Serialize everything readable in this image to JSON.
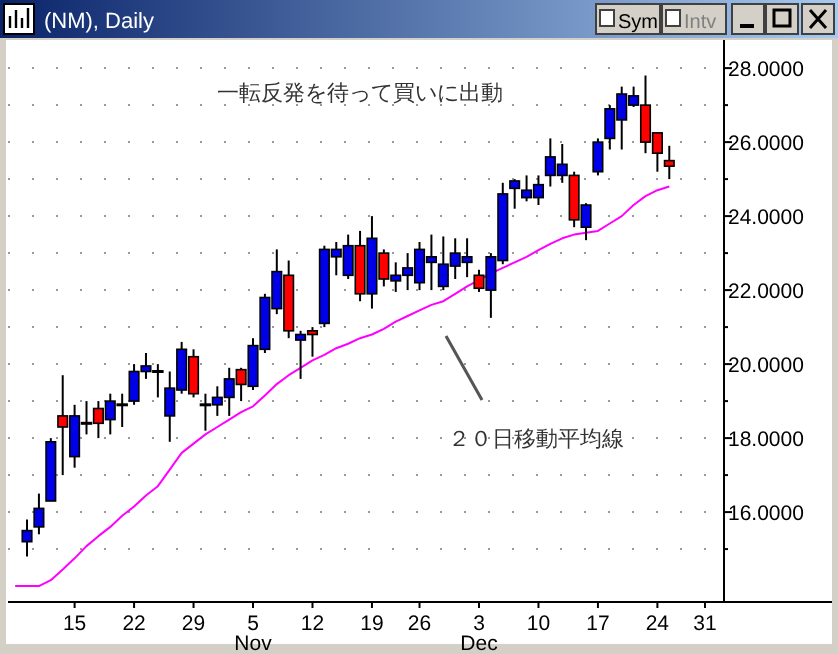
{
  "chart_data": {
    "type": "candlestick",
    "title": "(NM), Daily",
    "categories": [
      null,
      null,
      null,
      null,
      null,
      "15",
      null,
      null,
      null,
      null,
      "22",
      null,
      null,
      null,
      null,
      "29",
      null,
      null,
      null,
      null,
      "5\nNov",
      null,
      null,
      null,
      null,
      "12",
      null,
      null,
      null,
      null,
      "19",
      null,
      null,
      null,
      "26",
      null,
      null,
      null,
      null,
      "3\nDec",
      null,
      null,
      null,
      null,
      "10",
      null,
      null,
      null,
      null,
      "17",
      null,
      null,
      null,
      null,
      "24",
      null,
      null,
      null,
      "31",
      null
    ],
    "ohlc": [
      null,
      [
        15.2,
        15.8,
        14.8,
        15.5
      ],
      [
        15.6,
        16.5,
        15.4,
        16.1
      ],
      [
        16.3,
        18.0,
        16.3,
        17.9
      ],
      [
        18.6,
        19.7,
        17.0,
        18.3
      ],
      [
        17.5,
        18.9,
        17.2,
        18.6
      ],
      [
        18.4,
        19.0,
        18.1,
        18.4
      ],
      [
        18.8,
        19.0,
        18.0,
        18.4
      ],
      [
        18.5,
        19.2,
        18.1,
        19.0
      ],
      [
        18.9,
        19.2,
        18.3,
        18.9
      ],
      [
        19.0,
        20.0,
        18.9,
        19.8
      ],
      [
        19.8,
        20.3,
        19.6,
        19.95
      ],
      [
        19.8,
        20.0,
        19.1,
        19.8
      ],
      [
        18.6,
        19.8,
        17.9,
        19.35
      ],
      [
        19.3,
        20.6,
        19.2,
        20.4
      ],
      [
        20.2,
        20.4,
        19.1,
        19.2
      ],
      [
        18.9,
        19.2,
        18.2,
        18.9
      ],
      [
        18.9,
        19.4,
        18.6,
        19.1
      ],
      [
        19.1,
        19.9,
        18.6,
        19.6
      ],
      [
        19.85,
        19.9,
        19.0,
        19.45
      ],
      [
        19.4,
        20.7,
        19.3,
        20.5
      ],
      [
        20.4,
        21.9,
        20.3,
        21.8
      ],
      [
        21.5,
        23.1,
        21.35,
        22.5
      ],
      [
        22.4,
        22.8,
        20.7,
        20.9
      ],
      [
        20.65,
        20.9,
        19.6,
        20.8
      ],
      [
        20.9,
        21.0,
        20.2,
        20.8
      ],
      [
        21.1,
        23.2,
        21.0,
        23.1
      ],
      [
        22.9,
        23.3,
        22.4,
        23.1
      ],
      [
        22.4,
        23.5,
        22.3,
        23.2
      ],
      [
        23.2,
        23.6,
        21.7,
        21.9
      ],
      [
        21.9,
        24.0,
        21.5,
        23.4
      ],
      [
        23.0,
        23.1,
        22.1,
        22.3
      ],
      [
        22.25,
        22.75,
        21.95,
        22.4
      ],
      [
        22.4,
        23.0,
        22.0,
        22.6
      ],
      [
        22.2,
        23.3,
        22.0,
        23.1
      ],
      [
        22.75,
        23.5,
        22.0,
        22.9
      ],
      [
        22.1,
        23.45,
        22.0,
        22.7
      ],
      [
        22.65,
        23.4,
        22.3,
        23.0
      ],
      [
        22.75,
        23.4,
        22.35,
        22.9
      ],
      [
        22.4,
        22.55,
        21.95,
        22.05
      ],
      [
        22.0,
        23.0,
        21.25,
        22.9
      ],
      [
        22.8,
        24.9,
        22.7,
        24.6
      ],
      [
        24.75,
        25.0,
        24.2,
        24.95
      ],
      [
        24.5,
        25.1,
        24.4,
        24.7
      ],
      [
        24.5,
        25.1,
        24.3,
        24.85
      ],
      [
        25.1,
        26.1,
        24.8,
        25.6
      ],
      [
        25.1,
        25.95,
        24.9,
        25.4
      ],
      [
        25.1,
        25.2,
        23.7,
        23.9
      ],
      [
        23.7,
        24.35,
        23.35,
        24.3
      ],
      [
        25.2,
        26.1,
        25.1,
        26.0
      ],
      [
        26.1,
        27.0,
        25.8,
        26.9
      ],
      [
        26.6,
        27.5,
        25.8,
        27.3
      ],
      [
        27.0,
        27.5,
        26.95,
        27.25
      ],
      [
        27.0,
        27.8,
        25.7,
        26.0
      ],
      [
        26.25,
        26.25,
        25.2,
        25.7
      ],
      [
        25.5,
        25.9,
        25.0,
        25.35
      ],
      null,
      null,
      null,
      null
    ],
    "colors": [
      null,
      "#0000e8",
      "#0000e8",
      "#0000e8",
      "#ff0000",
      "#0000e8",
      "#000000",
      "#ff0000",
      "#0000e8",
      "#000000",
      "#0000e8",
      "#0000e8",
      "#000000",
      "#0000e8",
      "#0000e8",
      "#ff0000",
      "#000000",
      "#0000e8",
      "#0000e8",
      "#ff0000",
      "#0000e8",
      "#0000e8",
      "#0000e8",
      "#ff0000",
      "#0000e8",
      "#ff0000",
      "#0000e8",
      "#0000e8",
      "#0000e8",
      "#ff0000",
      "#0000e8",
      "#ff0000",
      "#0000e8",
      "#0000e8",
      "#0000e8",
      "#0000e8",
      "#0000e8",
      "#0000e8",
      "#0000e8",
      "#ff0000",
      "#0000e8",
      "#0000e8",
      "#0000e8",
      "#0000e8",
      "#0000e8",
      "#0000e8",
      "#0000e8",
      "#ff0000",
      "#0000e8",
      "#0000e8",
      "#0000e8",
      "#0000e8",
      "#0000e8",
      "#ff0000",
      "#ff0000",
      "#ff0000",
      null,
      null,
      null,
      null
    ],
    "series": [
      {
        "type": "line",
        "name": "２０日移動平均線",
        "color": "#ff00ff",
        "values": [
          14.0,
          14.0,
          14.0,
          14.16,
          14.45,
          14.75,
          15.08,
          15.35,
          15.6,
          15.9,
          16.15,
          16.45,
          16.7,
          17.15,
          17.6,
          17.85,
          18.1,
          18.3,
          18.5,
          18.7,
          18.86,
          19.15,
          19.46,
          19.7,
          19.9,
          20.1,
          20.25,
          20.43,
          20.55,
          20.7,
          20.8,
          20.95,
          21.15,
          21.3,
          21.45,
          21.6,
          21.7,
          21.9,
          22.1,
          22.27,
          22.45,
          22.6,
          22.75,
          22.9,
          23.08,
          23.25,
          23.4,
          23.5,
          23.55,
          23.6,
          23.8,
          24.0,
          24.3,
          24.54,
          24.7,
          24.8,
          null,
          null,
          null,
          null
        ]
      }
    ],
    "ylim": [
      13.57,
      28.76
    ],
    "yticks": [
      {
        "value": 15,
        "label": null
      },
      {
        "value": 16,
        "label": "16.0000"
      },
      {
        "value": 17,
        "label": null
      },
      {
        "value": 18,
        "label": "18.0000"
      },
      {
        "value": 19,
        "label": null
      },
      {
        "value": 20,
        "label": "20.0000"
      },
      {
        "value": 21,
        "label": null
      },
      {
        "value": 22,
        "label": "22.0000"
      },
      {
        "value": 23,
        "label": null
      },
      {
        "value": 24,
        "label": "24.0000"
      },
      {
        "value": 25,
        "label": null
      },
      {
        "value": 26,
        "label": "26.0000"
      },
      {
        "value": 27,
        "label": null
      },
      {
        "value": 28,
        "label": "28.0000"
      }
    ],
    "grid": "y",
    "annotations": [
      "一転反発を待って買いに出動",
      "Sym",
      "Intv"
    ]
  }
}
